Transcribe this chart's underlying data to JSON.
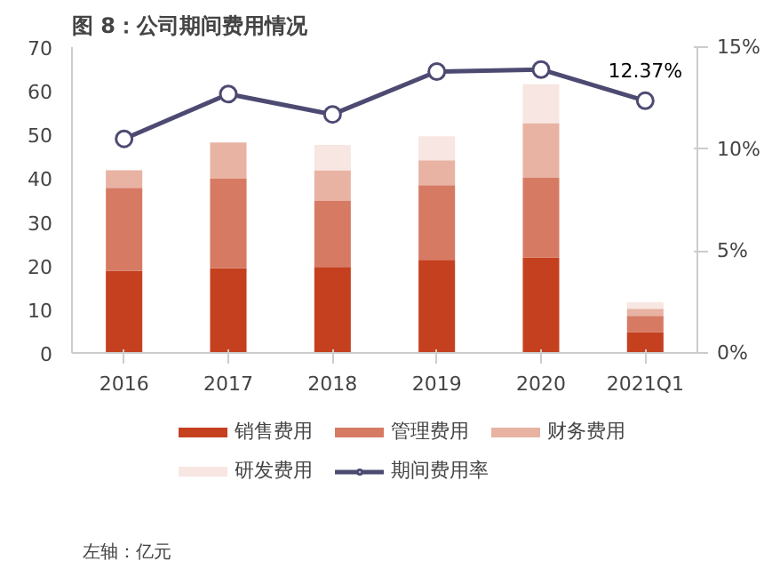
{
  "chart_data": {
    "type": "bar",
    "title": "图 8：公司期间费用情况",
    "categories": [
      "2016",
      "2017",
      "2018",
      "2019",
      "2020",
      "2021Q1"
    ],
    "stacked": true,
    "series": [
      {
        "name": "销售费用",
        "color": "#c5401f",
        "values": [
          18.8,
          19.4,
          19.7,
          21.3,
          21.8,
          4.8
        ]
      },
      {
        "name": "管理费用",
        "color": "#d67a63",
        "values": [
          19.0,
          20.5,
          15.1,
          17.1,
          18.3,
          3.7
        ]
      },
      {
        "name": "财务费用",
        "color": "#e8b3a3",
        "values": [
          4.0,
          8.3,
          7.0,
          5.7,
          12.5,
          1.6
        ]
      },
      {
        "name": "研发费用",
        "color": "#f8e6e2",
        "values": [
          0,
          0,
          5.8,
          5.5,
          8.9,
          1.5
        ]
      },
      {
        "name": "期间费用率",
        "type": "line",
        "axis": "y2",
        "color": "#4d4a72",
        "marker": "circle",
        "values": [
          10.5,
          12.7,
          11.7,
          13.8,
          13.9,
          12.37
        ],
        "value_labels": [
          null,
          null,
          null,
          null,
          null,
          "12.37%"
        ]
      }
    ],
    "ylim": [
      0,
      70
    ],
    "yticks": [
      0,
      10,
      20,
      30,
      40,
      50,
      60,
      70
    ],
    "y2lim": [
      0,
      15
    ],
    "y2ticks": [
      {
        "value": 0,
        "label": "0%"
      },
      {
        "value": 5,
        "label": "5%"
      },
      {
        "value": 10,
        "label": "10%"
      },
      {
        "value": 15,
        "label": "15%"
      }
    ],
    "grid": false,
    "legend": "bottom",
    "annotations": [
      "左轴：亿元"
    ]
  }
}
